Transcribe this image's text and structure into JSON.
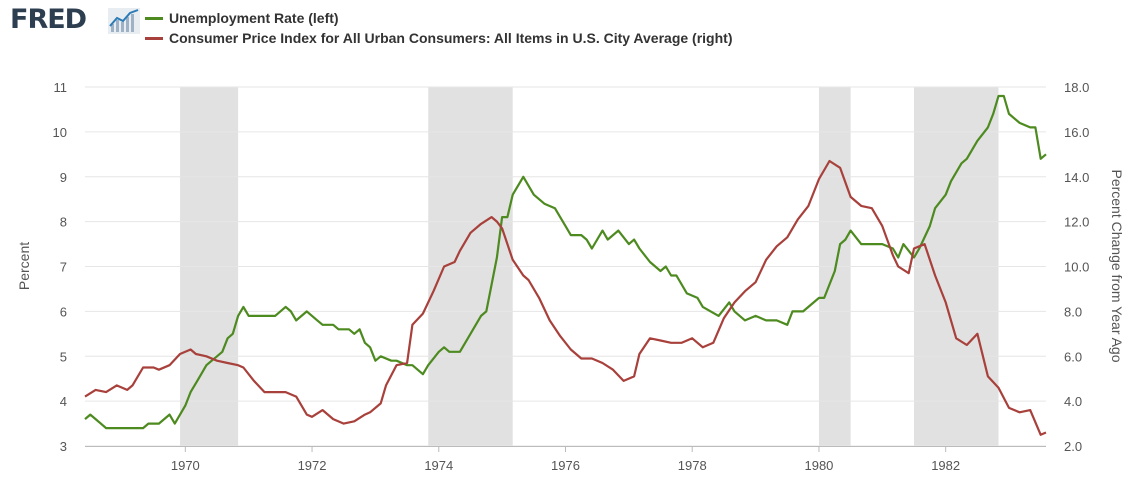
{
  "logo": {
    "text": "FRED"
  },
  "chart_data": {
    "type": "line",
    "x_axis": {
      "type": "date",
      "range": [
        "1968-06-01",
        "1983-08-01"
      ],
      "tick_labels": [
        "1970",
        "1972",
        "1974",
        "1976",
        "1978",
        "1980",
        "1982"
      ],
      "tick_years": [
        1970,
        1972,
        1974,
        1976,
        1978,
        1980,
        1982
      ]
    },
    "y_left": {
      "label": "Percent",
      "range": [
        3,
        11
      ],
      "ticks": [
        "3",
        "4",
        "5",
        "6",
        "7",
        "8",
        "9",
        "10",
        "11"
      ]
    },
    "y_right": {
      "label": "Percent Change from Year Ago",
      "range": [
        2,
        18
      ],
      "ticks": [
        "2.0",
        "4.0",
        "6.0",
        "8.0",
        "10.0",
        "12.0",
        "14.0",
        "16.0",
        "18.0"
      ]
    },
    "grid": "horizontal",
    "recessions": [
      {
        "start": "1969-12",
        "end": "1970-11"
      },
      {
        "start": "1973-11",
        "end": "1975-03"
      },
      {
        "start": "1980-01",
        "end": "1980-07"
      },
      {
        "start": "1981-07",
        "end": "1982-11"
      }
    ],
    "series": [
      {
        "name": "Unemployment Rate (left)",
        "axis": "left",
        "color": "#4d8a1f",
        "x": [
          "1968-06",
          "1968-07",
          "1968-08",
          "1968-09",
          "1968-10",
          "1968-12",
          "1969-03",
          "1969-05",
          "1969-06",
          "1969-08",
          "1969-09",
          "1969-10",
          "1969-11",
          "1970-01",
          "1970-02",
          "1970-03",
          "1970-04",
          "1970-05",
          "1970-06",
          "1970-07",
          "1970-08",
          "1970-09",
          "1970-10",
          "1970-11",
          "1970-12",
          "1971-01",
          "1971-02",
          "1971-04",
          "1971-06",
          "1971-08",
          "1971-09",
          "1971-10",
          "1971-12",
          "1972-02",
          "1972-03",
          "1972-05",
          "1972-06",
          "1972-08",
          "1972-09",
          "1972-10",
          "1972-11",
          "1972-12",
          "1973-01",
          "1973-02",
          "1973-04",
          "1973-05",
          "1973-07",
          "1973-08",
          "1973-10",
          "1973-11",
          "1974-01",
          "1974-02",
          "1974-03",
          "1974-04",
          "1974-05",
          "1974-07",
          "1974-09",
          "1974-10",
          "1974-11",
          "1974-12",
          "1975-01",
          "1975-02",
          "1975-03",
          "1975-05",
          "1975-07",
          "1975-09",
          "1975-11",
          "1976-01",
          "1976-02",
          "1976-04",
          "1976-05",
          "1976-06",
          "1976-08",
          "1976-09",
          "1976-11",
          "1977-01",
          "1977-02",
          "1977-03",
          "1977-05",
          "1977-07",
          "1977-08",
          "1977-09",
          "1977-10",
          "1977-12",
          "1978-02",
          "1978-03",
          "1978-06",
          "1978-08",
          "1978-09",
          "1978-11",
          "1979-01",
          "1979-03",
          "1979-05",
          "1979-07",
          "1979-08",
          "1979-10",
          "1980-01",
          "1980-02",
          "1980-04",
          "1980-05",
          "1980-06",
          "1980-07",
          "1980-09",
          "1980-11",
          "1981-01",
          "1981-03",
          "1981-04",
          "1981-05",
          "1981-07",
          "1981-08",
          "1981-10",
          "1981-11",
          "1982-01",
          "1982-02",
          "1982-04",
          "1982-05",
          "1982-07",
          "1982-09",
          "1982-10",
          "1982-11",
          "1982-12",
          "1983-01",
          "1983-03",
          "1983-05",
          "1983-06",
          "1983-07",
          "1983-08"
        ],
        "y": [
          3.6,
          3.7,
          3.6,
          3.5,
          3.4,
          3.4,
          3.4,
          3.4,
          3.5,
          3.5,
          3.6,
          3.7,
          3.5,
          3.9,
          4.2,
          4.4,
          4.6,
          4.8,
          4.9,
          5.0,
          5.1,
          5.4,
          5.5,
          5.9,
          6.1,
          5.9,
          5.9,
          5.9,
          5.9,
          6.1,
          6.0,
          5.8,
          6.0,
          5.8,
          5.7,
          5.7,
          5.6,
          5.6,
          5.5,
          5.6,
          5.3,
          5.2,
          4.9,
          5.0,
          4.9,
          4.9,
          4.8,
          4.8,
          4.6,
          4.8,
          5.1,
          5.2,
          5.1,
          5.1,
          5.1,
          5.5,
          5.9,
          6.0,
          6.6,
          7.2,
          8.1,
          8.1,
          8.6,
          9.0,
          8.6,
          8.4,
          8.3,
          7.9,
          7.7,
          7.7,
          7.6,
          7.4,
          7.8,
          7.6,
          7.8,
          7.5,
          7.6,
          7.4,
          7.1,
          6.9,
          7.0,
          6.8,
          6.8,
          6.4,
          6.3,
          6.1,
          5.9,
          6.2,
          6.0,
          5.8,
          5.9,
          5.8,
          5.8,
          5.7,
          6.0,
          6.0,
          6.3,
          6.3,
          6.9,
          7.5,
          7.6,
          7.8,
          7.5,
          7.5,
          7.5,
          7.4,
          7.2,
          7.5,
          7.2,
          7.4,
          7.9,
          8.3,
          8.6,
          8.9,
          9.3,
          9.4,
          9.8,
          10.1,
          10.4,
          10.8,
          10.8,
          10.4,
          10.2,
          10.1,
          10.1,
          9.4,
          9.5
        ]
      },
      {
        "name": "Consumer Price Index for All Urban Consumers: All Items in U.S. City Average (right)",
        "axis": "right",
        "color": "#a8403b",
        "x": [
          "1968-06",
          "1968-08",
          "1968-10",
          "1968-12",
          "1969-02",
          "1969-03",
          "1969-05",
          "1969-07",
          "1969-08",
          "1969-10",
          "1969-12",
          "1970-02",
          "1970-03",
          "1970-05",
          "1970-07",
          "1970-09",
          "1970-11",
          "1970-12",
          "1971-02",
          "1971-04",
          "1971-06",
          "1971-08",
          "1971-10",
          "1971-12",
          "1972-01",
          "1972-03",
          "1972-05",
          "1972-07",
          "1972-09",
          "1972-11",
          "1972-12",
          "1973-02",
          "1973-03",
          "1973-05",
          "1973-07",
          "1973-08",
          "1973-10",
          "1973-12",
          "1974-02",
          "1974-04",
          "1974-05",
          "1974-07",
          "1974-09",
          "1974-11",
          "1974-12",
          "1975-01",
          "1975-03",
          "1975-05",
          "1975-06",
          "1975-08",
          "1975-10",
          "1975-12",
          "1976-02",
          "1976-04",
          "1976-06",
          "1976-08",
          "1976-10",
          "1976-12",
          "1977-02",
          "1977-03",
          "1977-05",
          "1977-07",
          "1977-09",
          "1977-11",
          "1978-01",
          "1978-03",
          "1978-05",
          "1978-07",
          "1978-09",
          "1978-11",
          "1979-01",
          "1979-03",
          "1979-05",
          "1979-07",
          "1979-09",
          "1979-11",
          "1980-01",
          "1980-03",
          "1980-05",
          "1980-07",
          "1980-09",
          "1980-11",
          "1981-01",
          "1981-03",
          "1981-04",
          "1981-06",
          "1981-07",
          "1981-08",
          "1981-09",
          "1981-11",
          "1982-01",
          "1982-03",
          "1982-05",
          "1982-07",
          "1982-09",
          "1982-11",
          "1983-01",
          "1983-03",
          "1983-05",
          "1983-07",
          "1983-08"
        ],
        "y": [
          4.2,
          4.5,
          4.4,
          4.7,
          4.5,
          4.7,
          5.5,
          5.5,
          5.4,
          5.6,
          6.1,
          6.3,
          6.1,
          6.0,
          5.8,
          5.7,
          5.6,
          5.5,
          4.9,
          4.4,
          4.4,
          4.4,
          4.2,
          3.4,
          3.3,
          3.6,
          3.2,
          3.0,
          3.1,
          3.4,
          3.5,
          3.9,
          4.7,
          5.6,
          5.7,
          7.4,
          7.9,
          8.9,
          10.0,
          10.2,
          10.7,
          11.5,
          11.9,
          12.2,
          12.0,
          11.7,
          10.3,
          9.6,
          9.4,
          8.6,
          7.6,
          6.9,
          6.3,
          5.9,
          5.9,
          5.7,
          5.4,
          4.9,
          5.1,
          6.1,
          6.8,
          6.7,
          6.6,
          6.6,
          6.8,
          6.4,
          6.6,
          7.7,
          8.4,
          8.9,
          9.3,
          10.3,
          10.9,
          11.3,
          12.1,
          12.7,
          13.9,
          14.7,
          14.4,
          13.1,
          12.7,
          12.6,
          11.8,
          10.5,
          10.0,
          9.7,
          10.8,
          10.9,
          11.0,
          9.6,
          8.4,
          6.8,
          6.5,
          7.0,
          5.1,
          4.6,
          3.7,
          3.5,
          3.6,
          2.5,
          2.6
        ]
      }
    ]
  }
}
